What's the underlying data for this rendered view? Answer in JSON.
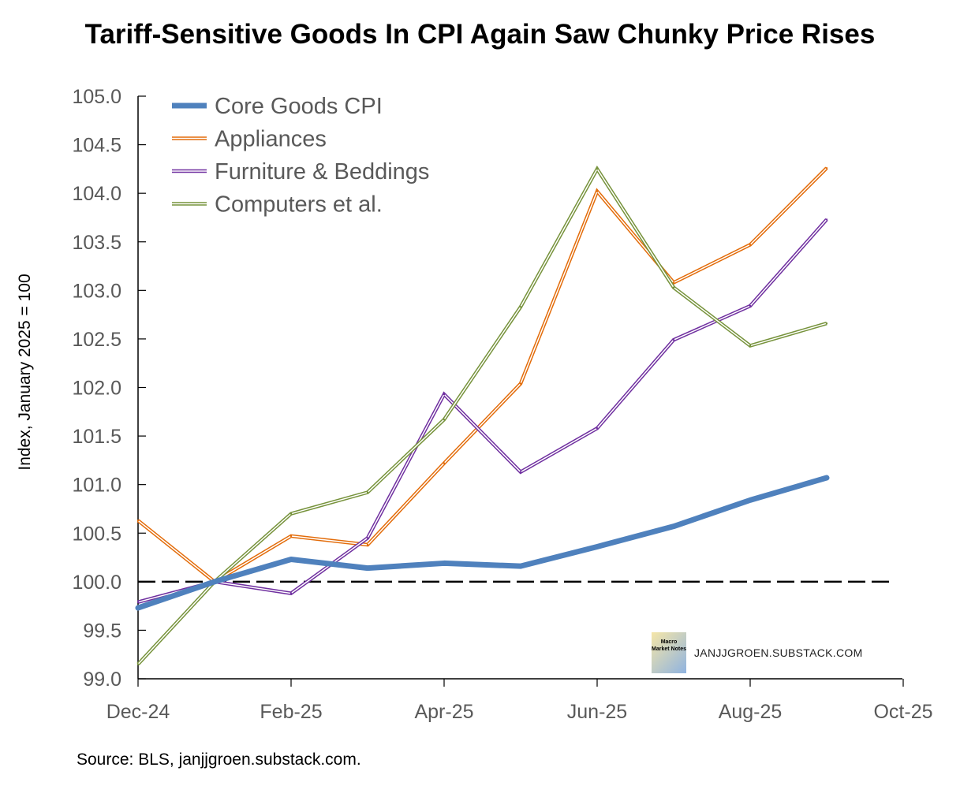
{
  "chart_data": {
    "type": "line",
    "title": "Tariff-Sensitive Goods In CPI Again Saw Chunky Price Rises",
    "xlabel": "",
    "ylabel": "Index, January 2025 = 100",
    "ylim": [
      99.0,
      105.0
    ],
    "yticks": [
      "99.0",
      "99.5",
      "100.0",
      "100.5",
      "101.0",
      "101.5",
      "102.0",
      "102.5",
      "103.0",
      "103.5",
      "104.0",
      "104.5",
      "105.0"
    ],
    "xticks": [
      "Dec-24",
      "Feb-25",
      "Apr-25",
      "Jun-25",
      "Aug-25",
      "Oct-25"
    ],
    "x": [
      "Dec-24",
      "Jan-25",
      "Feb-25",
      "Mar-25",
      "Apr-25",
      "May-25",
      "Jun-25",
      "Jul-25",
      "Aug-25",
      "Sep-25"
    ],
    "reference_line": 100.0,
    "legend_position": "top-left",
    "series": [
      {
        "name": "Core Goods CPI",
        "color": "#4f81bd",
        "style": "thick",
        "values": [
          99.73,
          100.0,
          100.23,
          100.14,
          100.19,
          100.16,
          100.36,
          100.57,
          100.84,
          101.07
        ]
      },
      {
        "name": "Appliances",
        "color": "#e36c0a",
        "style": "double",
        "values": [
          100.63,
          100.0,
          100.47,
          100.38,
          101.22,
          102.04,
          104.02,
          103.08,
          103.47,
          104.26
        ]
      },
      {
        "name": "Furniture & Beddings",
        "color": "#7030a0",
        "style": "double",
        "values": [
          99.79,
          100.0,
          99.88,
          100.45,
          101.93,
          101.13,
          101.58,
          102.49,
          102.84,
          103.73
        ]
      },
      {
        "name": "Computers et al.",
        "color": "#77933c",
        "style": "double",
        "values": [
          99.15,
          100.0,
          100.7,
          100.92,
          101.67,
          102.83,
          104.25,
          103.03,
          102.43,
          102.66
        ]
      }
    ],
    "source": "Source: BLS, janjjgroen.substack.com.",
    "watermark": {
      "logo_text": "Macro Market Notes",
      "text": "JANJJGROEN.SUBSTACK.COM"
    }
  }
}
